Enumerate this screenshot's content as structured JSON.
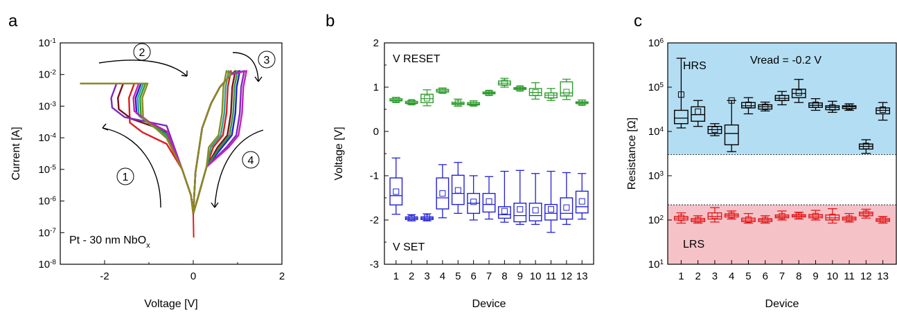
{
  "panels": {
    "a": {
      "letter": "a",
      "xlabel": "Voltage [V]",
      "ylabel": "Current [A]",
      "annotation_main": "Pt - 30 nm NbO",
      "annotation_sub": "x",
      "steps": [
        "1",
        "2",
        "3",
        "4"
      ]
    },
    "b": {
      "letter": "b",
      "xlabel": "Device",
      "ylabel": "Voltage [V]",
      "label_reset": "V RESET",
      "label_set": "V SET"
    },
    "c": {
      "letter": "c",
      "xlabel": "Device",
      "ylabel": "Resistance [Ω]",
      "label_hrs": "HRS",
      "label_lrs": "LRS",
      "label_vread": "Vread = -0.2 V"
    }
  },
  "colors": {
    "reset": "#2e9b2e",
    "set": "#1f1fd6",
    "hrs": "#000000",
    "lrs": "#e01b1b",
    "hrs_band": "#b3ddf2",
    "lrs_band": "#f5c2c8"
  },
  "chart_data": [
    {
      "type": "line",
      "panel": "a",
      "xlabel": "Voltage [V]",
      "ylabel": "Current [A]",
      "xlim": [
        -3,
        2
      ],
      "ylim": [
        1e-08,
        0.1
      ],
      "yscale": "log",
      "x_ticks": [
        "-2",
        "0",
        "2"
      ],
      "y_ticks": [
        {
          "base": "10",
          "exp": "-8"
        },
        {
          "base": "10",
          "exp": "-7"
        },
        {
          "base": "10",
          "exp": "-6"
        },
        {
          "base": "10",
          "exp": "-5"
        },
        {
          "base": "10",
          "exp": "-4"
        },
        {
          "base": "10",
          "exp": "-3"
        },
        {
          "base": "10",
          "exp": "-2"
        },
        {
          "base": "10",
          "exp": "-1"
        }
      ],
      "series": [
        {
          "color": "#e01b1b",
          "reset_v": -1.45,
          "set_v": 0.75,
          "neg_i": [
            0.0003,
            4e-05
          ]
        },
        {
          "color": "#7a0f1e",
          "reset_v": -1.7,
          "set_v": 0.85,
          "neg_i": [
            0.0008,
            0.0001
          ]
        },
        {
          "color": "#1f1fd6",
          "reset_v": -1.3,
          "set_v": 0.95,
          "neg_i": [
            0.0006,
            9e-05
          ]
        },
        {
          "color": "#2aa198",
          "reset_v": -1.25,
          "set_v": 0.7,
          "neg_i": [
            0.0005,
            7e-05
          ]
        },
        {
          "color": "#2e9b2e",
          "reset_v": -1.2,
          "set_v": 0.9,
          "neg_i": [
            0.0005,
            8e-05
          ]
        },
        {
          "color": "#7b2cbf",
          "reset_v": -1.85,
          "set_v": 1.05,
          "neg_i": [
            0.0009,
            0.00015
          ]
        },
        {
          "color": "#c91fb5",
          "reset_v": -1.35,
          "set_v": 1.1,
          "neg_i": [
            0.0007,
            0.0001
          ]
        },
        {
          "color": "#8a8a1c",
          "reset_v": -1.15,
          "set_v": 0.65,
          "neg_i": [
            0.0004,
            6e-05
          ]
        }
      ]
    },
    {
      "type": "box",
      "panel": "b",
      "xlabel": "Device",
      "ylabel": "Voltage [V]",
      "ylim": [
        -3,
        2
      ],
      "y_ticks": [
        "-3",
        "-2",
        "-1",
        "0",
        "1",
        "2"
      ],
      "categories": [
        "1",
        "2",
        "3",
        "4",
        "5",
        "6",
        "7",
        "8",
        "9",
        "10",
        "11",
        "12",
        "13"
      ],
      "series": [
        {
          "name": "V RESET",
          "color": "#2e9b2e",
          "boxes": [
            {
              "wlo": 0.66,
              "q1": 0.69,
              "med": 0.71,
              "q3": 0.74,
              "whi": 0.77,
              "mean": 0.71
            },
            {
              "wlo": 0.61,
              "q1": 0.63,
              "med": 0.65,
              "q3": 0.68,
              "whi": 0.7,
              "mean": 0.66
            },
            {
              "wlo": 0.58,
              "q1": 0.65,
              "med": 0.74,
              "q3": 0.84,
              "whi": 0.94,
              "mean": 0.75
            },
            {
              "wlo": 0.87,
              "q1": 0.89,
              "med": 0.92,
              "q3": 0.95,
              "whi": 0.98,
              "mean": 0.92
            },
            {
              "wlo": 0.57,
              "q1": 0.61,
              "med": 0.63,
              "q3": 0.66,
              "whi": 0.73,
              "mean": 0.64
            },
            {
              "wlo": 0.58,
              "q1": 0.6,
              "med": 0.62,
              "q3": 0.65,
              "whi": 0.69,
              "mean": 0.63
            },
            {
              "wlo": 0.82,
              "q1": 0.85,
              "med": 0.87,
              "q3": 0.89,
              "whi": 0.92,
              "mean": 0.87
            },
            {
              "wlo": 1.0,
              "q1": 1.05,
              "med": 1.09,
              "q3": 1.14,
              "whi": 1.2,
              "mean": 1.1
            },
            {
              "wlo": 0.92,
              "q1": 0.95,
              "med": 0.97,
              "q3": 0.99,
              "whi": 1.02,
              "mean": 0.97
            },
            {
              "wlo": 0.73,
              "q1": 0.81,
              "med": 0.88,
              "q3": 0.97,
              "whi": 1.1,
              "mean": 0.88
            },
            {
              "wlo": 0.7,
              "q1": 0.76,
              "med": 0.82,
              "q3": 0.87,
              "whi": 0.97,
              "mean": 0.81
            },
            {
              "wlo": 0.72,
              "q1": 0.8,
              "med": 0.87,
              "q3": 1.12,
              "whi": 1.18,
              "mean": 0.89
            },
            {
              "wlo": 0.6,
              "q1": 0.63,
              "med": 0.65,
              "q3": 0.67,
              "whi": 0.71,
              "mean": 0.65
            }
          ]
        },
        {
          "name": "V SET",
          "color": "#1f1fd6",
          "boxes": [
            {
              "wlo": -1.87,
              "q1": -1.66,
              "med": -1.45,
              "q3": -1.05,
              "whi": -0.6,
              "mean": -1.36
            },
            {
              "wlo": -2.02,
              "q1": -1.99,
              "med": -1.96,
              "q3": -1.93,
              "whi": -1.88,
              "mean": -1.96
            },
            {
              "wlo": -2.02,
              "q1": -1.99,
              "med": -1.96,
              "q3": -1.93,
              "whi": -1.86,
              "mean": -1.95
            },
            {
              "wlo": -1.95,
              "q1": -1.75,
              "med": -1.5,
              "q3": -1.05,
              "whi": -0.75,
              "mean": -1.4
            },
            {
              "wlo": -1.85,
              "q1": -1.65,
              "med": -1.4,
              "q3": -0.99,
              "whi": -0.7,
              "mean": -1.33
            },
            {
              "wlo": -2.0,
              "q1": -1.85,
              "med": -1.62,
              "q3": -1.4,
              "whi": -1.0,
              "mean": -1.59
            },
            {
              "wlo": -1.98,
              "q1": -1.82,
              "med": -1.65,
              "q3": -1.4,
              "whi": -1.02,
              "mean": -1.58
            },
            {
              "wlo": -2.05,
              "q1": -1.96,
              "med": -1.88,
              "q3": -1.7,
              "whi": -0.9,
              "mean": -1.8
            },
            {
              "wlo": -2.1,
              "q1": -2.04,
              "med": -1.9,
              "q3": -1.62,
              "whi": -0.88,
              "mean": -1.76
            },
            {
              "wlo": -2.1,
              "q1": -2.02,
              "med": -1.9,
              "q3": -1.62,
              "whi": -0.95,
              "mean": -1.78
            },
            {
              "wlo": -2.28,
              "q1": -2.0,
              "med": -1.85,
              "q3": -1.65,
              "whi": -0.9,
              "mean": -1.76
            },
            {
              "wlo": -2.1,
              "q1": -1.98,
              "med": -1.85,
              "q3": -1.5,
              "whi": -0.93,
              "mean": -1.72
            },
            {
              "wlo": -1.98,
              "q1": -1.84,
              "med": -1.7,
              "q3": -1.35,
              "whi": -0.95,
              "mean": -1.58
            }
          ]
        }
      ]
    },
    {
      "type": "box",
      "panel": "c",
      "xlabel": "Device",
      "ylabel": "Resistance [Ω]",
      "ylim": [
        10,
        1000000
      ],
      "yscale": "log",
      "y_ticks": [
        {
          "base": "10",
          "exp": "1"
        },
        {
          "base": "10",
          "exp": "2"
        },
        {
          "base": "10",
          "exp": "3"
        },
        {
          "base": "10",
          "exp": "4"
        },
        {
          "base": "10",
          "exp": "5"
        },
        {
          "base": "10",
          "exp": "6"
        }
      ],
      "hrs_band_min": 3000,
      "lrs_band_max": 220,
      "categories": [
        "1",
        "2",
        "3",
        "4",
        "5",
        "6",
        "7",
        "8",
        "9",
        "10",
        "11",
        "12",
        "13"
      ],
      "series": [
        {
          "name": "HRS",
          "color": "#000000",
          "boxes": [
            {
              "wlo": 12000,
              "q1": 15000,
              "med": 20000,
              "q3": 30000,
              "whi": 450000,
              "mean": 68000
            },
            {
              "wlo": 13000,
              "q1": 17000,
              "med": 24000,
              "q3": 36000,
              "whi": 50000,
              "mean": 28000
            },
            {
              "wlo": 8000,
              "q1": 9000,
              "med": 11000,
              "q3": 13000,
              "whi": 15000,
              "mean": 11000
            },
            {
              "wlo": 3500,
              "q1": 5000,
              "med": 9000,
              "q3": 14000,
              "whi": 50000,
              "mean": 50000
            },
            {
              "wlo": 25000,
              "q1": 34000,
              "med": 38000,
              "q3": 45000,
              "whi": 58000,
              "mean": 40000
            },
            {
              "wlo": 29000,
              "q1": 32000,
              "med": 36000,
              "q3": 40000,
              "whi": 46000,
              "mean": 36000
            },
            {
              "wlo": 40000,
              "q1": 50000,
              "med": 56000,
              "q3": 65000,
              "whi": 80000,
              "mean": 57000
            },
            {
              "wlo": 45000,
              "q1": 58000,
              "med": 72000,
              "q3": 90000,
              "whi": 150000,
              "mean": 75000
            },
            {
              "wlo": 30000,
              "q1": 35000,
              "med": 39000,
              "q3": 44000,
              "whi": 55000,
              "mean": 40000
            },
            {
              "wlo": 27000,
              "q1": 31000,
              "med": 35000,
              "q3": 38000,
              "whi": 48000,
              "mean": 35000
            },
            {
              "wlo": 30000,
              "q1": 33000,
              "med": 36000,
              "q3": 38000,
              "whi": 42000,
              "mean": 36000
            },
            {
              "wlo": 3200,
              "q1": 4000,
              "med": 4600,
              "q3": 5200,
              "whi": 6500,
              "mean": 4700
            },
            {
              "wlo": 18000,
              "q1": 25000,
              "med": 30000,
              "q3": 34000,
              "whi": 45000,
              "mean": 31000
            }
          ]
        },
        {
          "name": "LRS",
          "color": "#e01b1b",
          "boxes": [
            {
              "wlo": 85,
              "q1": 100,
              "med": 110,
              "q3": 120,
              "whi": 145,
              "mean": 112
            },
            {
              "wlo": 85,
              "q1": 92,
              "med": 100,
              "q3": 108,
              "whi": 125,
              "mean": 100
            },
            {
              "wlo": 90,
              "q1": 105,
              "med": 120,
              "q3": 145,
              "whi": 190,
              "mean": 125
            },
            {
              "wlo": 105,
              "q1": 117,
              "med": 127,
              "q3": 137,
              "whi": 160,
              "mean": 128
            },
            {
              "wlo": 85,
              "q1": 92,
              "med": 100,
              "q3": 110,
              "whi": 140,
              "mean": 102
            },
            {
              "wlo": 85,
              "q1": 92,
              "med": 100,
              "q3": 107,
              "whi": 125,
              "mean": 100
            },
            {
              "wlo": 100,
              "q1": 112,
              "med": 120,
              "q3": 130,
              "whi": 160,
              "mean": 122
            },
            {
              "wlo": 105,
              "q1": 117,
              "med": 124,
              "q3": 132,
              "whi": 150,
              "mean": 125
            },
            {
              "wlo": 100,
              "q1": 112,
              "med": 122,
              "q3": 133,
              "whi": 165,
              "mean": 123
            },
            {
              "wlo": 85,
              "q1": 100,
              "med": 112,
              "q3": 130,
              "whi": 180,
              "mean": 118
            },
            {
              "wlo": 90,
              "q1": 100,
              "med": 108,
              "q3": 116,
              "whi": 140,
              "mean": 108
            },
            {
              "wlo": 110,
              "q1": 125,
              "med": 138,
              "q3": 150,
              "whi": 175,
              "mean": 139
            },
            {
              "wlo": 85,
              "q1": 93,
              "med": 100,
              "q3": 107,
              "whi": 120,
              "mean": 100
            }
          ]
        }
      ]
    }
  ]
}
